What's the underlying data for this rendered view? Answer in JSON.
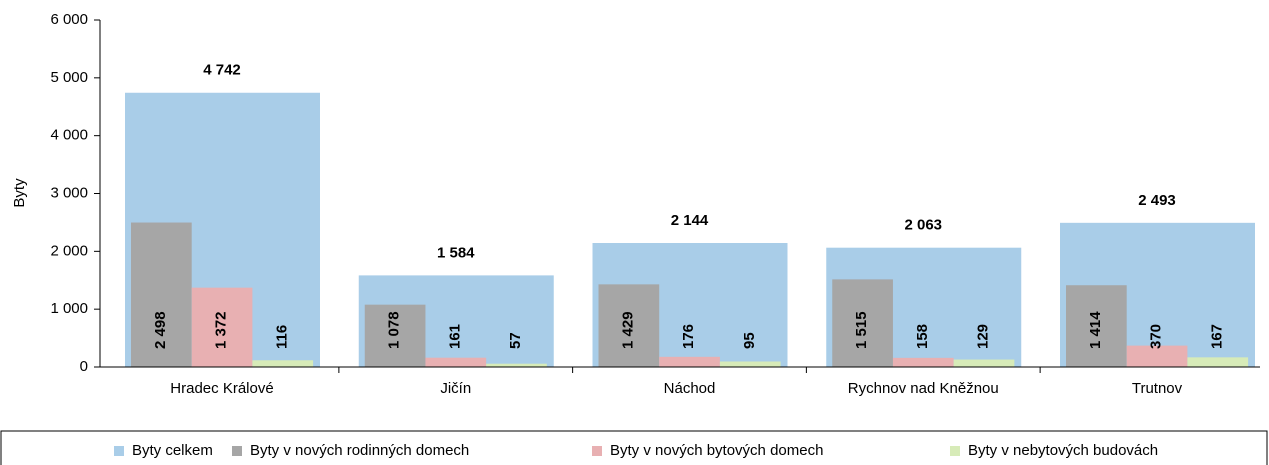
{
  "chart_data": {
    "type": "bar",
    "ylabel": "Byty",
    "categories": [
      "Hradec Králové",
      "Jičín",
      "Náchod",
      "Rychnov nad Kněžnou",
      "Trutnov"
    ],
    "series": [
      {
        "name": "Byty celkem",
        "color": "#a9cde8",
        "values": [
          4742,
          1584,
          2144,
          2063,
          2493
        ],
        "value_labels": [
          "4 742",
          "1 584",
          "2 144",
          "2 063",
          "2 493"
        ]
      },
      {
        "name": "Byty v nových rodinných domech",
        "color": "#a6a6a6",
        "values": [
          2498,
          1078,
          1429,
          1515,
          1414
        ],
        "value_labels": [
          "2 498",
          "1 078",
          "1 429",
          "1 515",
          "1 414"
        ]
      },
      {
        "name": "Byty v nových bytových domech",
        "color": "#e8b0b2",
        "values": [
          1372,
          161,
          176,
          158,
          370
        ],
        "value_labels": [
          "1 372",
          "161",
          "176",
          "158",
          "370"
        ]
      },
      {
        "name": "Byty v nebytových budovách",
        "color": "#d7ebb8",
        "values": [
          116,
          57,
          95,
          129,
          167
        ],
        "value_labels": [
          "116",
          "57",
          "95",
          "129",
          "167"
        ]
      }
    ],
    "ylim": [
      0,
      6000
    ],
    "yticks": [
      0,
      {
        "value": 1000,
        "label": "1 000"
      },
      {
        "value": 2000,
        "label": "2 000"
      },
      {
        "value": 3000,
        "label": "3 000"
      },
      {
        "value": 4000,
        "label": "4 000"
      },
      {
        "value": 5000,
        "label": "5 000"
      },
      {
        "value": 6000,
        "label": "6 000"
      }
    ],
    "legend": "bottom"
  }
}
